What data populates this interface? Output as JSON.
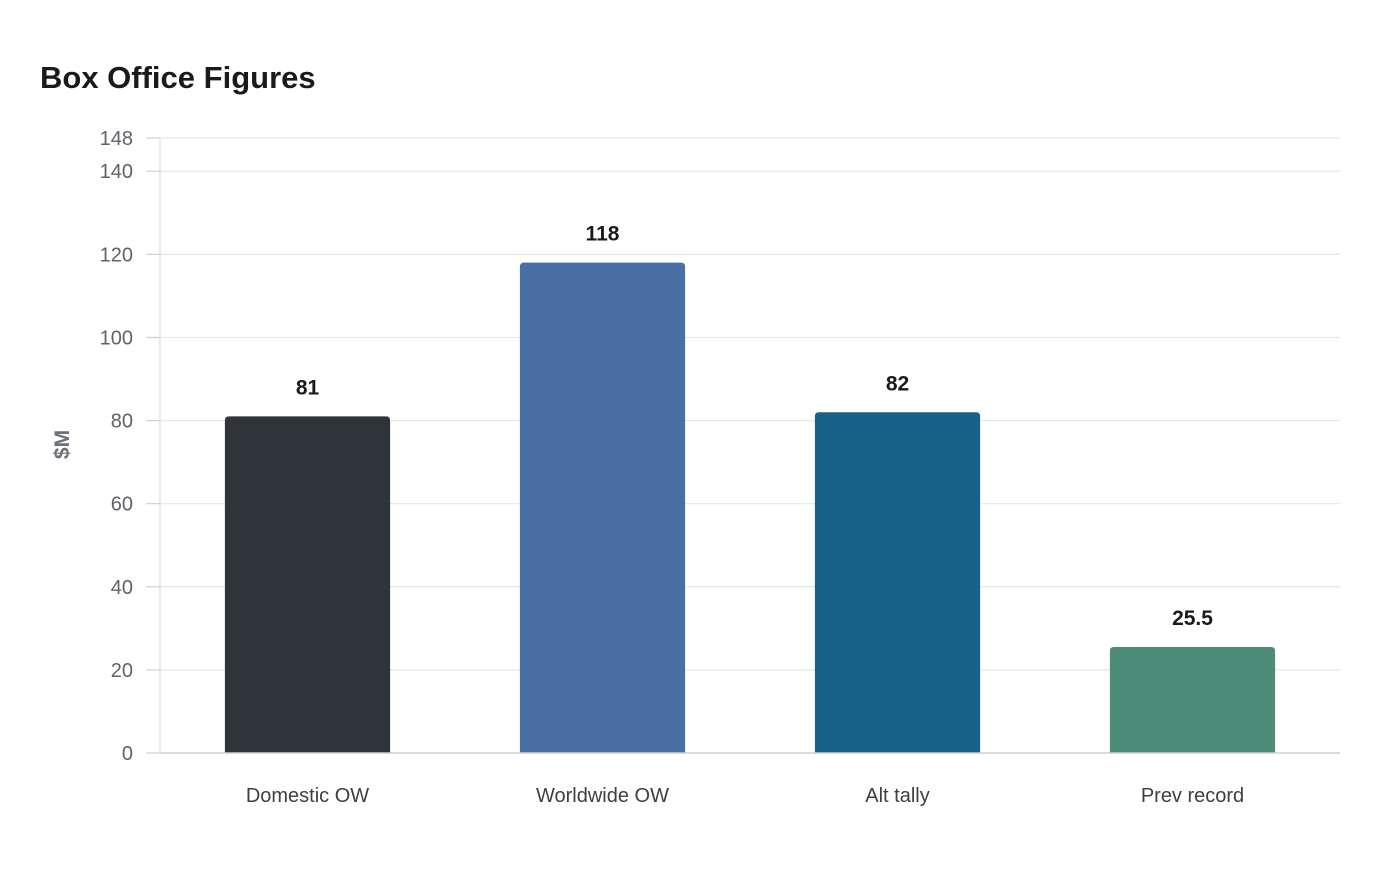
{
  "chart_data": {
    "type": "bar",
    "title": "Box Office Figures",
    "xlabel": "",
    "ylabel": "$M",
    "categories": [
      "Domestic OW",
      "Worldwide OW",
      "Alt tally",
      "Prev record"
    ],
    "values": [
      81,
      118,
      82,
      25.5
    ],
    "value_labels": [
      "81",
      "118",
      "82",
      "25.5"
    ],
    "colors": [
      "#2e3538",
      "#4a6fa5",
      "#186188",
      "#4e8c7a"
    ],
    "ylim": [
      0,
      148
    ],
    "yticks": [
      0,
      20,
      40,
      60,
      80,
      100,
      120,
      140,
      148
    ],
    "grid": true,
    "legend": "none"
  }
}
